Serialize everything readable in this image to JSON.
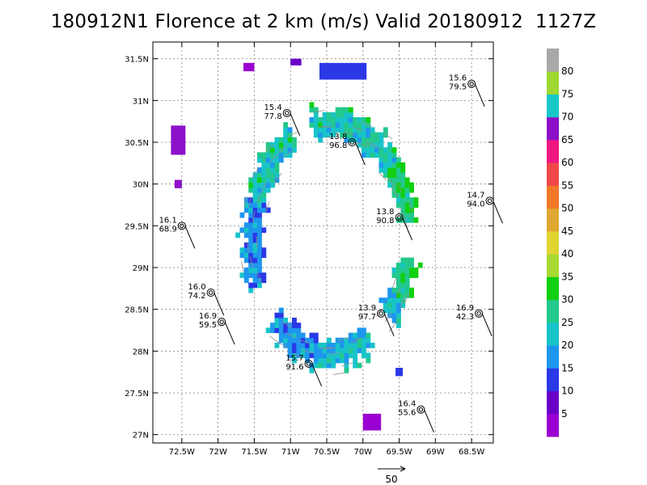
{
  "chart_data": {
    "type": "heatmap",
    "title": "180912N1 Florence at 2 km (m/s) Valid 20180912  1127Z",
    "xlabel": "",
    "ylabel": "",
    "xlim": [
      -72.9,
      -68.2
    ],
    "ylim": [
      26.9,
      31.7
    ],
    "grid": true,
    "x_ticks": [
      {
        "value": -72.5,
        "label": "72.5W"
      },
      {
        "value": -72,
        "label": "72W"
      },
      {
        "value": -71.5,
        "label": "71.5W"
      },
      {
        "value": -71,
        "label": "71W"
      },
      {
        "value": -70.5,
        "label": "70.5W"
      },
      {
        "value": -70,
        "label": "70W"
      },
      {
        "value": -69.5,
        "label": "69.5W"
      },
      {
        "value": -69,
        "label": "69W"
      },
      {
        "value": -68.5,
        "label": "68.5W"
      }
    ],
    "y_ticks": [
      {
        "value": 27,
        "label": "27N"
      },
      {
        "value": 27.5,
        "label": "27.5N"
      },
      {
        "value": 28,
        "label": "28N"
      },
      {
        "value": 28.5,
        "label": "28.5N"
      },
      {
        "value": 29,
        "label": "29N"
      },
      {
        "value": 29.5,
        "label": "29.5N"
      },
      {
        "value": 30,
        "label": "30N"
      },
      {
        "value": 30.5,
        "label": "30.5N"
      },
      {
        "value": 31,
        "label": "31N"
      },
      {
        "value": 31.5,
        "label": "31.5N"
      }
    ],
    "colorbar": {
      "labels": [
        "5",
        "10",
        "15",
        "20",
        "25",
        "30",
        "35",
        "40",
        "45",
        "50",
        "55",
        "60",
        "65",
        "70",
        "75",
        "80"
      ],
      "colors": [
        "#9a00d2",
        "#6a00c8",
        "#2a38e6",
        "#1e96ee",
        "#18c4c8",
        "#22c88c",
        "#10d010",
        "#a8d832",
        "#e0d432",
        "#e0a832",
        "#f07828",
        "#f04848",
        "#f01880",
        "#8c10c8",
        "#18c8c8",
        "#9ed830",
        "#a8a8a8"
      ]
    },
    "eye_fix_circles": [
      {
        "lon": -71.05,
        "lat": 30.85,
        "value": "15.4",
        "value2": "77.8"
      },
      {
        "lon": -70.15,
        "lat": 30.5,
        "value": "13.8",
        "value2": "96.8"
      },
      {
        "lon": -68.5,
        "lat": 31.2,
        "value": "15.6",
        "value2": "79.5"
      },
      {
        "lon": -72.5,
        "lat": 29.5,
        "value": "16.1",
        "value2": "68.9"
      },
      {
        "lon": -69.5,
        "lat": 29.6,
        "value": "13.8",
        "value2": "90.8"
      },
      {
        "lon": -68.25,
        "lat": 29.8,
        "value": "14.7",
        "value2": "94.0"
      },
      {
        "lon": -72.1,
        "lat": 28.7,
        "value": "16.0",
        "value2": "74.2"
      },
      {
        "lon": -71.95,
        "lat": 28.35,
        "value": "16.9",
        "value2": "59.5"
      },
      {
        "lon": -69.75,
        "lat": 28.45,
        "value": "13.9",
        "value2": "97.7"
      },
      {
        "lon": -68.4,
        "lat": 28.45,
        "value": "16.9",
        "value2": "42.3"
      },
      {
        "lon": -70.75,
        "lat": 27.85,
        "value": "15.7",
        "value2": "91.6"
      },
      {
        "lon": -69.2,
        "lat": 27.3,
        "value": "16.4",
        "value2": "55.6"
      }
    ],
    "reference_vector": {
      "label": "50"
    }
  }
}
